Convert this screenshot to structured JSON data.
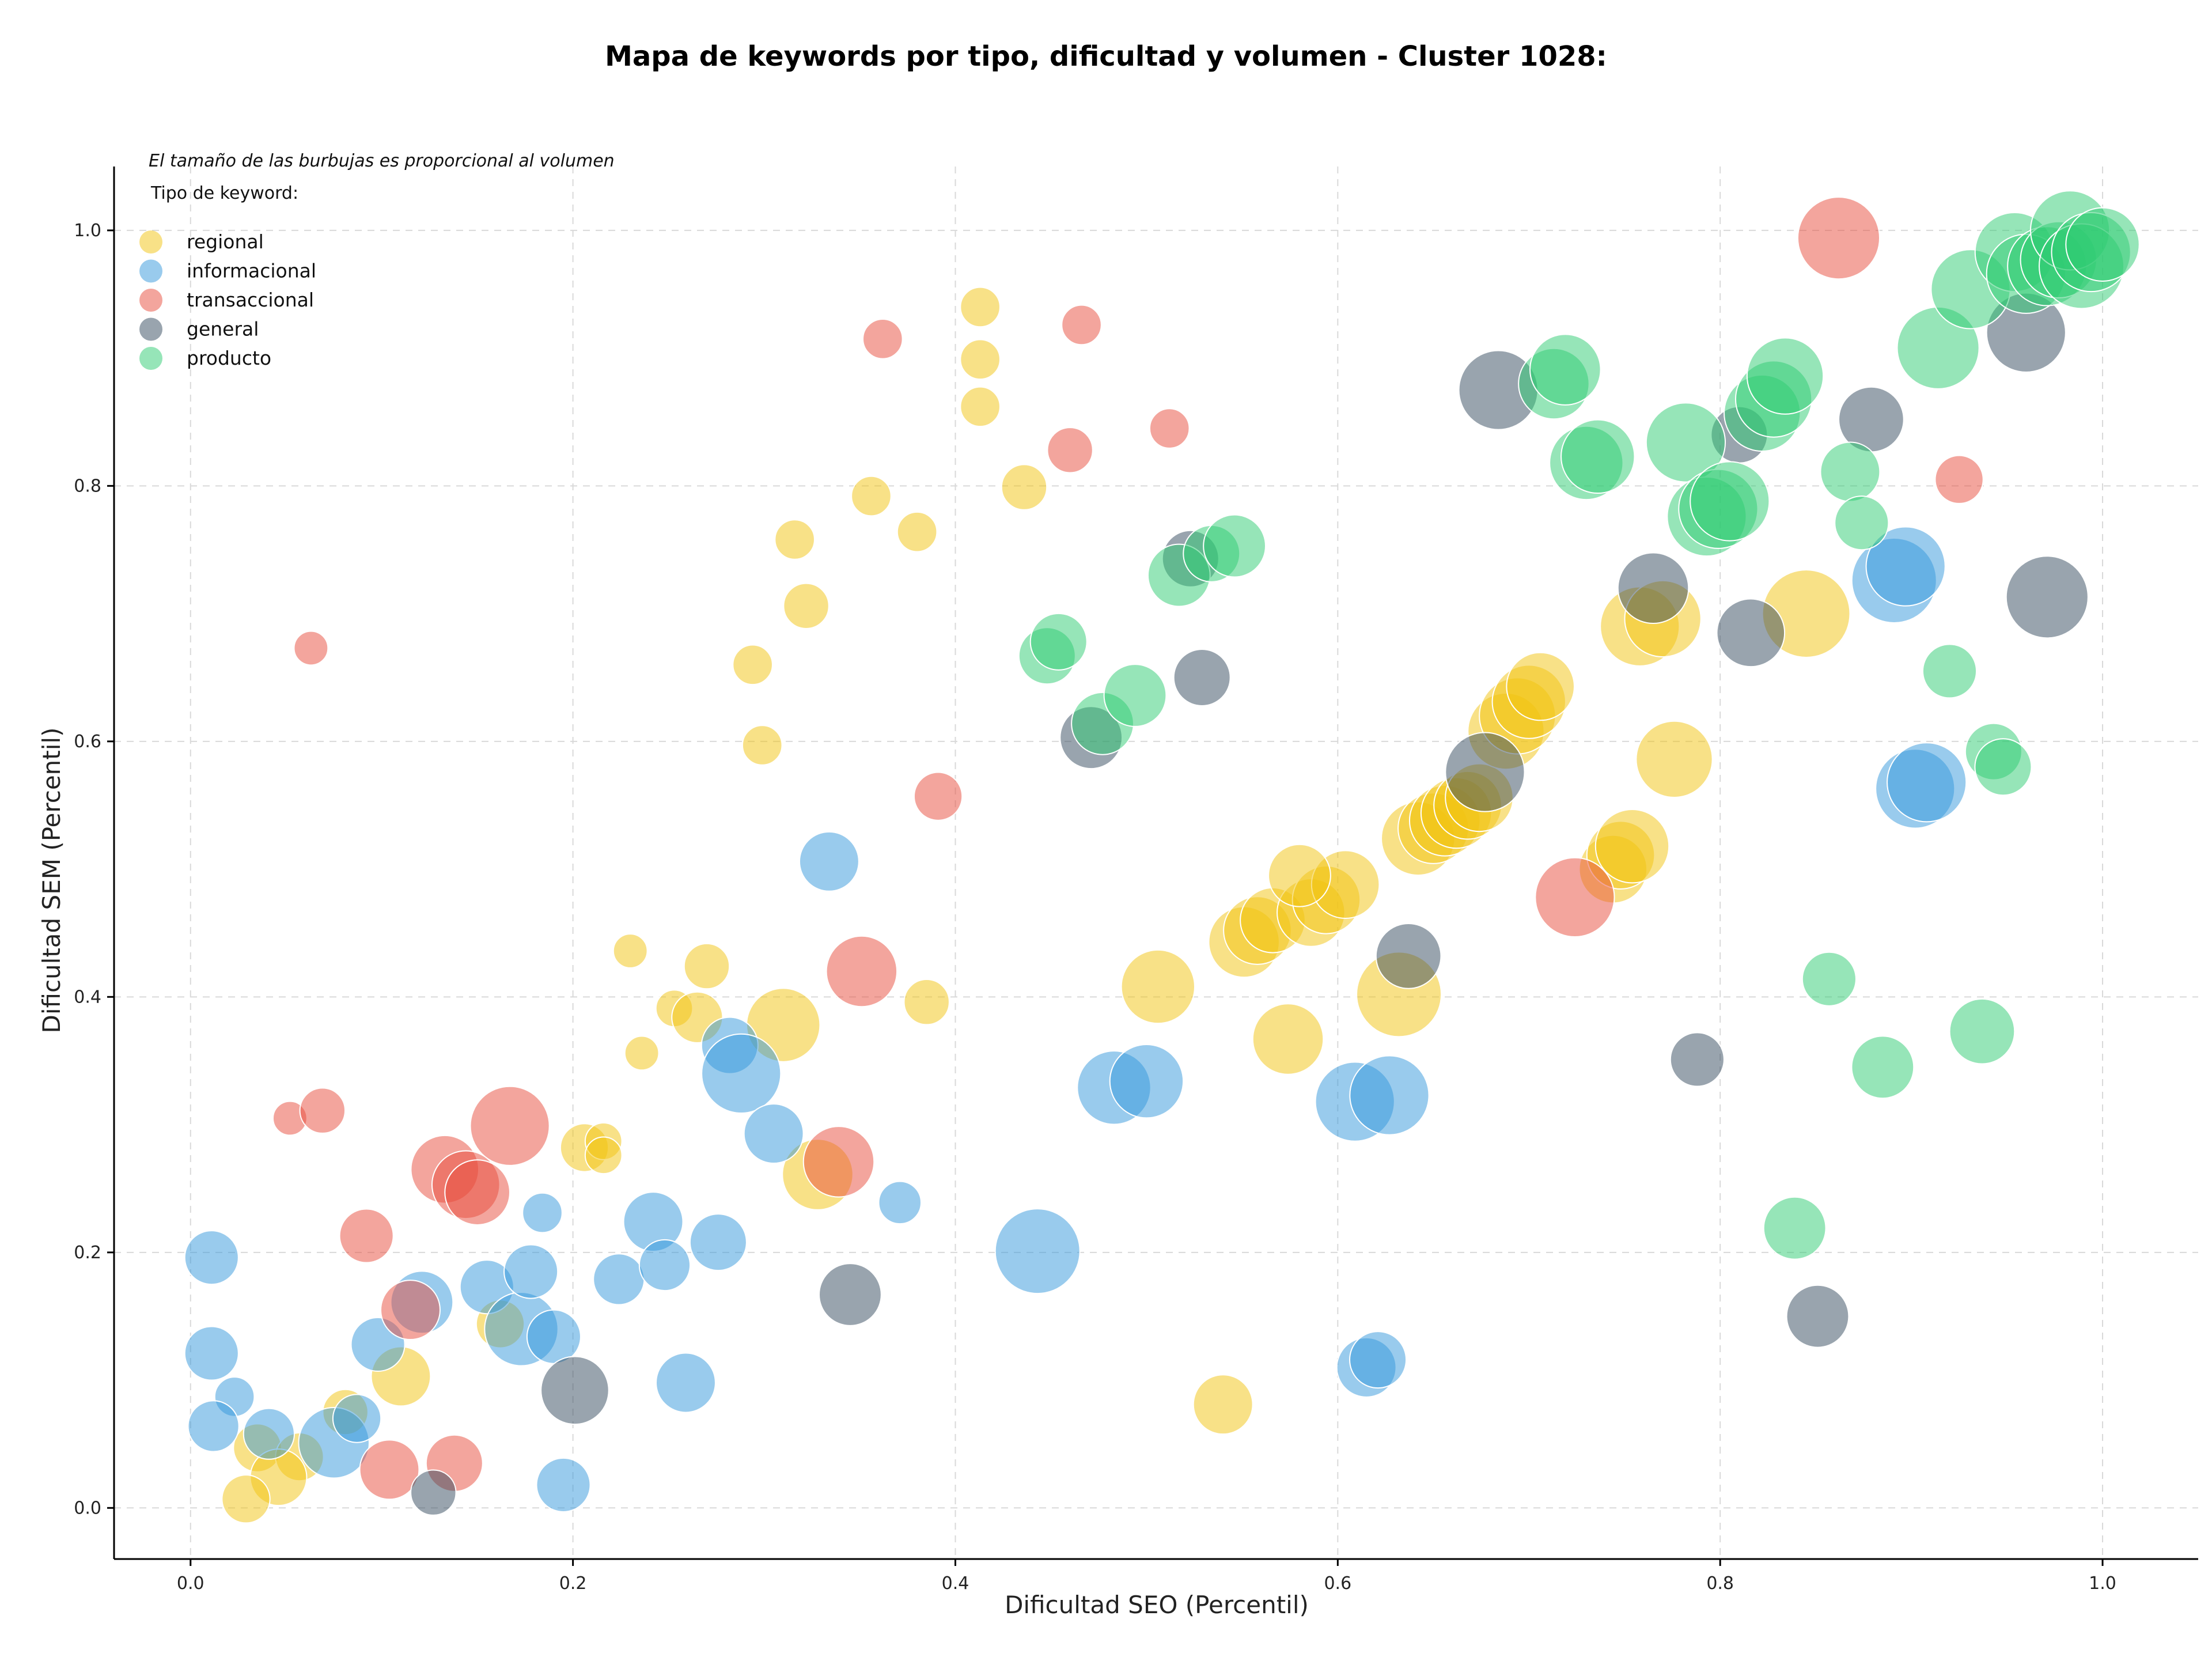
{
  "chart_data": {
    "type": "scatter",
    "title": "Mapa de keywords por tipo, dificultad y volumen - Cluster 1028:",
    "xlabel": "Dificultad SEO (Percentil)",
    "ylabel": "Dificultad SEM (Percentil)",
    "xlim": [
      -0.04,
      1.05
    ],
    "ylim": [
      -0.04,
      1.05
    ],
    "xticks": [
      0.0,
      0.2,
      0.4,
      0.6,
      0.8,
      1.0
    ],
    "yticks": [
      0.0,
      0.2,
      0.4,
      0.6,
      0.8,
      1.0
    ],
    "xtick_labels": [
      "0.0",
      "0.2",
      "0.4",
      "0.6",
      "0.8",
      "1.0"
    ],
    "ytick_labels": [
      "0.0",
      "0.2",
      "0.4",
      "0.6",
      "0.8",
      "1.0"
    ],
    "grid": true,
    "note": "El tamaño de las burbujas es proporcional al volumen",
    "legend": {
      "title": "Tipo de keyword:",
      "placement": "top-left",
      "items": [
        "regional",
        "informacional",
        "transaccional",
        "general",
        "producto"
      ]
    },
    "colors": {
      "regional": "#f1c40f",
      "informacional": "#3498db",
      "transaccional": "#e74c3c",
      "general": "#34495e",
      "producto": "#2ecc71"
    },
    "series": [
      {
        "name": "regional",
        "points": [
          {
            "x": 0.413,
            "y": 0.94,
            "s": 14
          },
          {
            "x": 0.413,
            "y": 0.899,
            "s": 14
          },
          {
            "x": 0.413,
            "y": 0.862,
            "s": 14
          },
          {
            "x": 0.436,
            "y": 0.799,
            "s": 16
          },
          {
            "x": 0.356,
            "y": 0.792,
            "s": 14
          },
          {
            "x": 0.38,
            "y": 0.764,
            "s": 14
          },
          {
            "x": 0.316,
            "y": 0.758,
            "s": 14
          },
          {
            "x": 0.322,
            "y": 0.706,
            "s": 16
          },
          {
            "x": 0.294,
            "y": 0.66,
            "s": 14
          },
          {
            "x": 0.299,
            "y": 0.597,
            "s": 14
          },
          {
            "x": 0.23,
            "y": 0.436,
            "s": 12
          },
          {
            "x": 0.27,
            "y": 0.424,
            "s": 16
          },
          {
            "x": 0.385,
            "y": 0.396,
            "s": 16
          },
          {
            "x": 0.253,
            "y": 0.391,
            "s": 13
          },
          {
            "x": 0.265,
            "y": 0.384,
            "s": 18
          },
          {
            "x": 0.31,
            "y": 0.378,
            "s": 26
          },
          {
            "x": 0.236,
            "y": 0.356,
            "s": 12
          },
          {
            "x": 0.206,
            "y": 0.282,
            "s": 17
          },
          {
            "x": 0.216,
            "y": 0.287,
            "s": 13
          },
          {
            "x": 0.216,
            "y": 0.276,
            "s": 13
          },
          {
            "x": 0.328,
            "y": 0.261,
            "s": 25
          },
          {
            "x": 0.162,
            "y": 0.144,
            "s": 17
          },
          {
            "x": 0.11,
            "y": 0.103,
            "s": 21
          },
          {
            "x": 0.081,
            "y": 0.075,
            "s": 16
          },
          {
            "x": 0.035,
            "y": 0.047,
            "s": 17
          },
          {
            "x": 0.057,
            "y": 0.04,
            "s": 17
          },
          {
            "x": 0.046,
            "y": 0.024,
            "s": 20
          },
          {
            "x": 0.029,
            "y": 0.007,
            "s": 17
          },
          {
            "x": 0.54,
            "y": 0.081,
            "s": 21
          },
          {
            "x": 0.574,
            "y": 0.367,
            "s": 25
          },
          {
            "x": 0.506,
            "y": 0.408,
            "s": 26
          },
          {
            "x": 0.632,
            "y": 0.402,
            "s": 30
          },
          {
            "x": 0.551,
            "y": 0.443,
            "s": 25
          },
          {
            "x": 0.558,
            "y": 0.452,
            "s": 24
          },
          {
            "x": 0.566,
            "y": 0.46,
            "s": 23
          },
          {
            "x": 0.586,
            "y": 0.466,
            "s": 24
          },
          {
            "x": 0.594,
            "y": 0.476,
            "s": 24
          },
          {
            "x": 0.604,
            "y": 0.488,
            "s": 24
          },
          {
            "x": 0.58,
            "y": 0.495,
            "s": 22
          },
          {
            "x": 0.642,
            "y": 0.524,
            "s": 26
          },
          {
            "x": 0.65,
            "y": 0.532,
            "s": 25
          },
          {
            "x": 0.656,
            "y": 0.538,
            "s": 25
          },
          {
            "x": 0.662,
            "y": 0.544,
            "s": 25
          },
          {
            "x": 0.668,
            "y": 0.55,
            "s": 24
          },
          {
            "x": 0.674,
            "y": 0.556,
            "s": 24
          },
          {
            "x": 0.688,
            "y": 0.608,
            "s": 27
          },
          {
            "x": 0.694,
            "y": 0.62,
            "s": 27
          },
          {
            "x": 0.7,
            "y": 0.631,
            "s": 26
          },
          {
            "x": 0.706,
            "y": 0.643,
            "s": 24
          },
          {
            "x": 0.744,
            "y": 0.5,
            "s": 24
          },
          {
            "x": 0.748,
            "y": 0.511,
            "s": 24
          },
          {
            "x": 0.754,
            "y": 0.518,
            "s": 26
          },
          {
            "x": 0.776,
            "y": 0.586,
            "s": 27
          },
          {
            "x": 0.758,
            "y": 0.69,
            "s": 28
          },
          {
            "x": 0.77,
            "y": 0.696,
            "s": 27
          },
          {
            "x": 0.845,
            "y": 0.7,
            "s": 31
          }
        ]
      },
      {
        "name": "informacional",
        "points": [
          {
            "x": 0.011,
            "y": 0.196,
            "s": 19
          },
          {
            "x": 0.011,
            "y": 0.121,
            "s": 19
          },
          {
            "x": 0.023,
            "y": 0.087,
            "s": 14
          },
          {
            "x": 0.012,
            "y": 0.064,
            "s": 18
          },
          {
            "x": 0.041,
            "y": 0.058,
            "s": 18
          },
          {
            "x": 0.075,
            "y": 0.051,
            "s": 25
          },
          {
            "x": 0.087,
            "y": 0.07,
            "s": 17
          },
          {
            "x": 0.098,
            "y": 0.128,
            "s": 19
          },
          {
            "x": 0.121,
            "y": 0.161,
            "s": 22
          },
          {
            "x": 0.155,
            "y": 0.173,
            "s": 19
          },
          {
            "x": 0.173,
            "y": 0.14,
            "s": 26
          },
          {
            "x": 0.19,
            "y": 0.134,
            "s": 19
          },
          {
            "x": 0.178,
            "y": 0.185,
            "s": 19
          },
          {
            "x": 0.184,
            "y": 0.231,
            "s": 14
          },
          {
            "x": 0.195,
            "y": 0.018,
            "s": 19
          },
          {
            "x": 0.224,
            "y": 0.179,
            "s": 18
          },
          {
            "x": 0.242,
            "y": 0.224,
            "s": 21
          },
          {
            "x": 0.248,
            "y": 0.19,
            "s": 18
          },
          {
            "x": 0.259,
            "y": 0.098,
            "s": 21
          },
          {
            "x": 0.276,
            "y": 0.208,
            "s": 20
          },
          {
            "x": 0.282,
            "y": 0.362,
            "s": 20
          },
          {
            "x": 0.288,
            "y": 0.34,
            "s": 28
          },
          {
            "x": 0.305,
            "y": 0.293,
            "s": 21
          },
          {
            "x": 0.334,
            "y": 0.506,
            "s": 21
          },
          {
            "x": 0.371,
            "y": 0.239,
            "s": 15
          },
          {
            "x": 0.443,
            "y": 0.201,
            "s": 30
          },
          {
            "x": 0.483,
            "y": 0.329,
            "s": 26
          },
          {
            "x": 0.5,
            "y": 0.334,
            "s": 26
          },
          {
            "x": 0.609,
            "y": 0.318,
            "s": 28
          },
          {
            "x": 0.627,
            "y": 0.323,
            "s": 28
          },
          {
            "x": 0.615,
            "y": 0.11,
            "s": 21
          },
          {
            "x": 0.621,
            "y": 0.116,
            "s": 20
          },
          {
            "x": 0.891,
            "y": 0.726,
            "s": 30
          },
          {
            "x": 0.897,
            "y": 0.737,
            "s": 28
          },
          {
            "x": 0.902,
            "y": 0.563,
            "s": 28
          },
          {
            "x": 0.908,
            "y": 0.568,
            "s": 28
          }
        ]
      },
      {
        "name": "transaccional",
        "points": [
          {
            "x": 0.362,
            "y": 0.915,
            "s": 14
          },
          {
            "x": 0.466,
            "y": 0.926,
            "s": 14
          },
          {
            "x": 0.46,
            "y": 0.828,
            "s": 16
          },
          {
            "x": 0.512,
            "y": 0.845,
            "s": 14
          },
          {
            "x": 0.063,
            "y": 0.673,
            "s": 12
          },
          {
            "x": 0.391,
            "y": 0.557,
            "s": 17
          },
          {
            "x": 0.351,
            "y": 0.42,
            "s": 25
          },
          {
            "x": 0.052,
            "y": 0.305,
            "s": 12
          },
          {
            "x": 0.069,
            "y": 0.311,
            "s": 16
          },
          {
            "x": 0.167,
            "y": 0.299,
            "s": 28
          },
          {
            "x": 0.133,
            "y": 0.265,
            "s": 24
          },
          {
            "x": 0.144,
            "y": 0.253,
            "s": 24
          },
          {
            "x": 0.15,
            "y": 0.247,
            "s": 23
          },
          {
            "x": 0.339,
            "y": 0.271,
            "s": 25
          },
          {
            "x": 0.092,
            "y": 0.213,
            "s": 19
          },
          {
            "x": 0.115,
            "y": 0.155,
            "s": 21
          },
          {
            "x": 0.104,
            "y": 0.03,
            "s": 21
          },
          {
            "x": 0.138,
            "y": 0.035,
            "s": 20
          },
          {
            "x": 0.724,
            "y": 0.478,
            "s": 28
          },
          {
            "x": 0.862,
            "y": 0.994,
            "s": 29
          },
          {
            "x": 0.925,
            "y": 0.805,
            "s": 17
          }
        ]
      },
      {
        "name": "general",
        "points": [
          {
            "x": 0.127,
            "y": 0.012,
            "s": 16
          },
          {
            "x": 0.201,
            "y": 0.092,
            "s": 24
          },
          {
            "x": 0.345,
            "y": 0.167,
            "s": 22
          },
          {
            "x": 0.471,
            "y": 0.603,
            "s": 22
          },
          {
            "x": 0.523,
            "y": 0.743,
            "s": 20
          },
          {
            "x": 0.529,
            "y": 0.65,
            "s": 20
          },
          {
            "x": 0.637,
            "y": 0.432,
            "s": 23
          },
          {
            "x": 0.677,
            "y": 0.576,
            "s": 28
          },
          {
            "x": 0.684,
            "y": 0.875,
            "s": 28
          },
          {
            "x": 0.765,
            "y": 0.72,
            "s": 25
          },
          {
            "x": 0.788,
            "y": 0.351,
            "s": 19
          },
          {
            "x": 0.81,
            "y": 0.84,
            "s": 20
          },
          {
            "x": 0.816,
            "y": 0.685,
            "s": 24
          },
          {
            "x": 0.851,
            "y": 0.15,
            "s": 22
          },
          {
            "x": 0.879,
            "y": 0.852,
            "s": 23
          },
          {
            "x": 0.96,
            "y": 0.92,
            "s": 28
          },
          {
            "x": 0.971,
            "y": 0.713,
            "s": 29
          }
        ]
      },
      {
        "name": "producto",
        "points": [
          {
            "x": 0.448,
            "y": 0.667,
            "s": 20
          },
          {
            "x": 0.454,
            "y": 0.678,
            "s": 20
          },
          {
            "x": 0.477,
            "y": 0.614,
            "s": 22
          },
          {
            "x": 0.494,
            "y": 0.636,
            "s": 22
          },
          {
            "x": 0.517,
            "y": 0.73,
            "s": 22
          },
          {
            "x": 0.534,
            "y": 0.747,
            "s": 20
          },
          {
            "x": 0.546,
            "y": 0.753,
            "s": 22
          },
          {
            "x": 0.713,
            "y": 0.88,
            "s": 25
          },
          {
            "x": 0.719,
            "y": 0.891,
            "s": 25
          },
          {
            "x": 0.73,
            "y": 0.818,
            "s": 26
          },
          {
            "x": 0.736,
            "y": 0.823,
            "s": 26
          },
          {
            "x": 0.782,
            "y": 0.834,
            "s": 28
          },
          {
            "x": 0.793,
            "y": 0.776,
            "s": 28
          },
          {
            "x": 0.799,
            "y": 0.782,
            "s": 28
          },
          {
            "x": 0.805,
            "y": 0.788,
            "s": 28
          },
          {
            "x": 0.822,
            "y": 0.857,
            "s": 27
          },
          {
            "x": 0.828,
            "y": 0.868,
            "s": 27
          },
          {
            "x": 0.834,
            "y": 0.886,
            "s": 27
          },
          {
            "x": 0.868,
            "y": 0.811,
            "s": 21
          },
          {
            "x": 0.874,
            "y": 0.771,
            "s": 19
          },
          {
            "x": 0.914,
            "y": 0.908,
            "s": 29
          },
          {
            "x": 0.92,
            "y": 0.655,
            "s": 19
          },
          {
            "x": 0.931,
            "y": 0.954,
            "s": 28
          },
          {
            "x": 0.954,
            "y": 0.983,
            "s": 28
          },
          {
            "x": 0.96,
            "y": 0.966,
            "s": 28
          },
          {
            "x": 0.971,
            "y": 0.972,
            "s": 28
          },
          {
            "x": 0.977,
            "y": 0.977,
            "s": 27
          },
          {
            "x": 0.983,
            "y": 1.0,
            "s": 28
          },
          {
            "x": 0.989,
            "y": 0.972,
            "s": 30
          },
          {
            "x": 0.994,
            "y": 0.983,
            "s": 28
          },
          {
            "x": 1.0,
            "y": 0.989,
            "s": 26
          },
          {
            "x": 0.943,
            "y": 0.592,
            "s": 20
          },
          {
            "x": 0.948,
            "y": 0.58,
            "s": 20
          },
          {
            "x": 0.937,
            "y": 0.373,
            "s": 23
          },
          {
            "x": 0.885,
            "y": 0.345,
            "s": 22
          },
          {
            "x": 0.857,
            "y": 0.414,
            "s": 19
          },
          {
            "x": 0.839,
            "y": 0.219,
            "s": 22
          }
        ]
      }
    ]
  }
}
